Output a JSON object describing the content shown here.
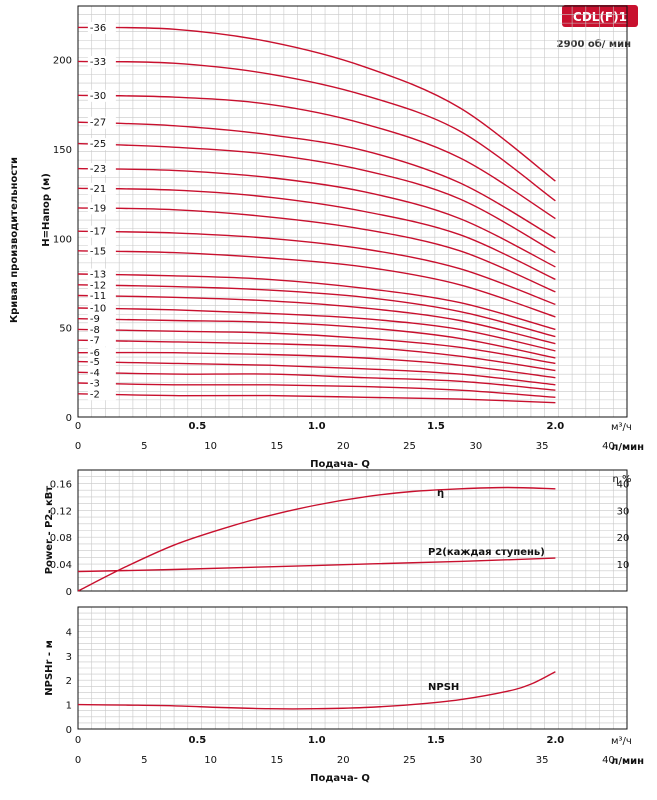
{
  "badge": {
    "text": "CDL(F)1",
    "color": "#c8102e"
  },
  "speed_label": "2900 об/ мин",
  "side_title": "Кривая производительности",
  "flow_label": "Подача- Q",
  "unit_m3h": "м³/ч",
  "unit_ls": "л/мин",
  "curve_color": "#c8102e",
  "chart_data": [
    {
      "type": "line",
      "name": "head",
      "ylabel": "H=Напор (м)",
      "xlim": [
        0,
        2.3
      ],
      "ylim": [
        0,
        230
      ],
      "x_ticks_top": [
        "0",
        "0.5",
        "1.0",
        "1.5",
        "2.0"
      ],
      "x_ticks_top_values": [
        0,
        0.5,
        1.0,
        1.5,
        2.0
      ],
      "x_ticks_bottom": [
        "0",
        "5",
        "10",
        "15",
        "20",
        "25",
        "30",
        "35",
        "40"
      ],
      "y_ticks": [
        "0",
        "50",
        "100",
        "150",
        "200"
      ],
      "y_tick_values": [
        0,
        50,
        100,
        150,
        200
      ],
      "stages": [
        {
          "label": "-36",
          "h0": 218,
          "hq": [
            [
              0.4,
              217
            ],
            [
              0.8,
              210
            ],
            [
              1.2,
              196
            ],
            [
              1.6,
              173
            ],
            [
              2.0,
              132
            ]
          ]
        },
        {
          "label": "-33",
          "h0": 199,
          "hq": [
            [
              0.4,
              198
            ],
            [
              0.8,
              192
            ],
            [
              1.2,
              180
            ],
            [
              1.6,
              160
            ],
            [
              2.0,
              121
            ]
          ]
        },
        {
          "label": "-30",
          "h0": 180,
          "hq": [
            [
              0.4,
              179
            ],
            [
              0.8,
              175
            ],
            [
              1.2,
              164
            ],
            [
              1.6,
              145
            ],
            [
              2.0,
              111
            ]
          ]
        },
        {
          "label": "-27",
          "h0": 165,
          "hq": [
            [
              0.4,
              163
            ],
            [
              0.8,
              158
            ],
            [
              1.2,
              149
            ],
            [
              1.6,
              131
            ],
            [
              2.0,
              100
            ]
          ]
        },
        {
          "label": "-25",
          "h0": 153,
          "hq": [
            [
              0.4,
              151
            ],
            [
              0.8,
              147
            ],
            [
              1.2,
              138
            ],
            [
              1.6,
              122
            ],
            [
              2.0,
              92
            ]
          ]
        },
        {
          "label": "-23",
          "h0": 139,
          "hq": [
            [
              0.4,
              138
            ],
            [
              0.8,
              134
            ],
            [
              1.2,
              126
            ],
            [
              1.6,
              111
            ],
            [
              2.0,
              84
            ]
          ]
        },
        {
          "label": "-21",
          "h0": 128,
          "hq": [
            [
              0.4,
              127
            ],
            [
              0.8,
              123
            ],
            [
              1.2,
              115
            ],
            [
              1.6,
              102
            ],
            [
              2.0,
              77
            ]
          ]
        },
        {
          "label": "-19",
          "h0": 117,
          "hq": [
            [
              0.4,
              116
            ],
            [
              0.8,
              112
            ],
            [
              1.2,
              105
            ],
            [
              1.6,
              93
            ],
            [
              2.0,
              70
            ]
          ]
        },
        {
          "label": "-17",
          "h0": 104,
          "hq": [
            [
              0.4,
              103
            ],
            [
              0.8,
              100
            ],
            [
              1.2,
              94
            ],
            [
              1.6,
              83
            ],
            [
              2.0,
              63
            ]
          ]
        },
        {
          "label": "-15",
          "h0": 93,
          "hq": [
            [
              0.4,
              92
            ],
            [
              0.8,
              89
            ],
            [
              1.2,
              84
            ],
            [
              1.6,
              74
            ],
            [
              2.0,
              56
            ]
          ]
        },
        {
          "label": "-13",
          "h0": 80,
          "hq": [
            [
              0.4,
              79
            ],
            [
              0.8,
              77
            ],
            [
              1.2,
              72
            ],
            [
              1.6,
              64
            ],
            [
              2.0,
              49
            ]
          ]
        },
        {
          "label": "-12",
          "h0": 74,
          "hq": [
            [
              0.4,
              73
            ],
            [
              0.8,
              71
            ],
            [
              1.2,
              67
            ],
            [
              1.6,
              59
            ],
            [
              2.0,
              45
            ]
          ]
        },
        {
          "label": "-11",
          "h0": 68,
          "hq": [
            [
              0.4,
              67
            ],
            [
              0.8,
              65
            ],
            [
              1.2,
              61
            ],
            [
              1.6,
              54
            ],
            [
              2.0,
              41
            ]
          ]
        },
        {
          "label": "-10",
          "h0": 61,
          "hq": [
            [
              0.4,
              60
            ],
            [
              0.8,
              58
            ],
            [
              1.2,
              55
            ],
            [
              1.6,
              49
            ],
            [
              2.0,
              37
            ]
          ]
        },
        {
          "label": "-9",
          "h0": 55,
          "hq": [
            [
              0.4,
              54
            ],
            [
              0.8,
              53
            ],
            [
              1.2,
              50
            ],
            [
              1.6,
              44
            ],
            [
              2.0,
              33
            ]
          ]
        },
        {
          "label": "-8",
          "h0": 49,
          "hq": [
            [
              0.4,
              48
            ],
            [
              0.8,
              47
            ],
            [
              1.2,
              44
            ],
            [
              1.6,
              39
            ],
            [
              2.0,
              30
            ]
          ]
        },
        {
          "label": "-7",
          "h0": 43,
          "hq": [
            [
              0.4,
              42
            ],
            [
              0.8,
              41
            ],
            [
              1.2,
              39
            ],
            [
              1.6,
              34
            ],
            [
              2.0,
              26
            ]
          ]
        },
        {
          "label": "-6",
          "h0": 36,
          "hq": [
            [
              0.4,
              36
            ],
            [
              0.8,
              35
            ],
            [
              1.2,
              33
            ],
            [
              1.6,
              29
            ],
            [
              2.0,
              22
            ]
          ]
        },
        {
          "label": "-5",
          "h0": 31,
          "hq": [
            [
              0.4,
              30
            ],
            [
              0.8,
              29
            ],
            [
              1.2,
              27
            ],
            [
              1.6,
              24
            ],
            [
              2.0,
              18
            ]
          ]
        },
        {
          "label": "-4",
          "h0": 25,
          "hq": [
            [
              0.4,
              24
            ],
            [
              0.8,
              24
            ],
            [
              1.2,
              22
            ],
            [
              1.6,
              20
            ],
            [
              2.0,
              15
            ]
          ]
        },
        {
          "label": "-3",
          "h0": 19,
          "hq": [
            [
              0.4,
              18
            ],
            [
              0.8,
              18
            ],
            [
              1.2,
              17
            ],
            [
              1.6,
              15
            ],
            [
              2.0,
              11
            ]
          ]
        },
        {
          "label": "-2",
          "h0": 13,
          "hq": [
            [
              0.4,
              12
            ],
            [
              0.8,
              12
            ],
            [
              1.2,
              11
            ],
            [
              1.6,
              10
            ],
            [
              2.0,
              8
            ]
          ]
        }
      ]
    },
    {
      "type": "line",
      "name": "power-efficiency",
      "ylabel": "Power - P2- кВт",
      "ylabel_right": "η %",
      "xlim": [
        0,
        2.3
      ],
      "ylim": [
        0,
        0.18
      ],
      "y_ticks": [
        "0",
        "0.04",
        "0.08",
        "0.12",
        "0.16"
      ],
      "y_tick_values": [
        0,
        0.04,
        0.08,
        0.12,
        0.16
      ],
      "y2lim": [
        0,
        45
      ],
      "y2_ticks": [
        "10",
        "20",
        "30",
        "40"
      ],
      "y2_tick_values": [
        10,
        20,
        30,
        40
      ],
      "series": [
        {
          "name": "η",
          "axis": "right",
          "x": [
            0,
            0.2,
            0.4,
            0.6,
            0.8,
            1.0,
            1.2,
            1.4,
            1.6,
            1.8,
            2.0
          ],
          "values": [
            0,
            9,
            17,
            23,
            28,
            32,
            35,
            37,
            38,
            38.5,
            38
          ]
        },
        {
          "name": "P2(каждая ступень)",
          "axis": "left",
          "x": [
            0,
            0.4,
            0.8,
            1.2,
            1.6,
            2.0
          ],
          "values": [
            0.029,
            0.032,
            0.036,
            0.04,
            0.044,
            0.049
          ]
        }
      ]
    },
    {
      "type": "line",
      "name": "npsh",
      "ylabel": "NPSHr - м",
      "xlim": [
        0,
        2.3
      ],
      "ylim": [
        0,
        5
      ],
      "x_ticks_top": [
        "0",
        "0.5",
        "1.0",
        "1.5",
        "2.0"
      ],
      "x_ticks_top_values": [
        0,
        0.5,
        1.0,
        1.5,
        2.0
      ],
      "x_ticks_bottom": [
        "0",
        "5",
        "10",
        "15",
        "20",
        "25",
        "30",
        "35",
        "40"
      ],
      "y_ticks": [
        "0",
        "1",
        "2",
        "3",
        "4"
      ],
      "y_tick_values": [
        0,
        1,
        2,
        3,
        4
      ],
      "series": [
        {
          "name": "NPSH",
          "x": [
            0,
            0.2,
            0.4,
            0.6,
            0.8,
            1.0,
            1.2,
            1.4,
            1.6,
            1.8,
            1.9,
            2.0
          ],
          "values": [
            1.0,
            0.98,
            0.95,
            0.88,
            0.83,
            0.83,
            0.88,
            1.0,
            1.2,
            1.55,
            1.85,
            2.35
          ]
        }
      ]
    }
  ]
}
